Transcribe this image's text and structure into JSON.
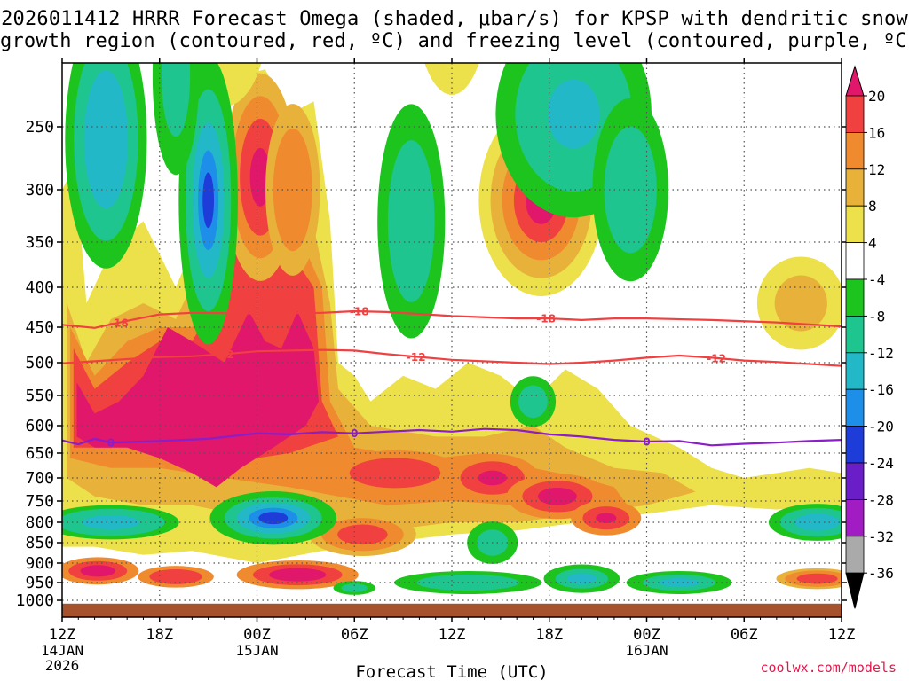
{
  "title": {
    "line1": "2026011412 HRRR Forecast Omega (shaded, μbar/s) for KPSP with dendritic snow",
    "line2": "growth region (contoured, red, ºC) and freezing level (contoured, purple, ºC)"
  },
  "credit": "coolwx.com/models",
  "chart_data": {
    "type": "heatmap",
    "title": "2026011412 HRRR Forecast Omega (shaded, μbar/s) for KPSP with dendritic snow growth region (contoured, red, ºC) and freezing level (contoured, purple, ºC)",
    "xlabel": "Forecast Time (UTC)",
    "ylabel": "",
    "x_range_hours": [
      0,
      48
    ],
    "x_ticks": [
      {
        "hour": 0,
        "label": "12Z",
        "sub1": "14JAN",
        "sub2": "2026"
      },
      {
        "hour": 6,
        "label": "18Z",
        "sub1": "",
        "sub2": ""
      },
      {
        "hour": 12,
        "label": "00Z",
        "sub1": "15JAN",
        "sub2": ""
      },
      {
        "hour": 18,
        "label": "06Z",
        "sub1": "",
        "sub2": ""
      },
      {
        "hour": 24,
        "label": "12Z",
        "sub1": "",
        "sub2": ""
      },
      {
        "hour": 30,
        "label": "18Z",
        "sub1": "",
        "sub2": ""
      },
      {
        "hour": 36,
        "label": "00Z",
        "sub1": "16JAN",
        "sub2": ""
      },
      {
        "hour": 42,
        "label": "06Z",
        "sub1": "",
        "sub2": ""
      },
      {
        "hour": 48,
        "label": "12Z",
        "sub1": "",
        "sub2": ""
      }
    ],
    "y_ticks": [
      250,
      300,
      350,
      400,
      450,
      500,
      550,
      600,
      650,
      700,
      750,
      800,
      850,
      900,
      950,
      1000
    ],
    "y_range_hpa": [
      200,
      1010
    ],
    "grid": true,
    "colorbar": {
      "position": "right",
      "labels": [
        "20",
        "16",
        "12",
        "8",
        "4",
        "-4",
        "-8",
        "-12",
        "-16",
        "-20",
        "-24",
        "-28",
        "-32",
        "-36"
      ],
      "colors": [
        "#e0176a",
        "#f04040",
        "#ef8a2e",
        "#e8b13a",
        "#ece14a",
        "#ffffff",
        "#1ec41e",
        "#1fc58e",
        "#22b8c8",
        "#1e8fe8",
        "#1e3cd8",
        "#6a1ec8",
        "#a21cc4",
        "#aaaaaa",
        "#000000"
      ]
    },
    "contours": [
      {
        "name": "-18",
        "color": "#f04040",
        "label": "-18",
        "points": [
          [
            0,
            447
          ],
          [
            2,
            451
          ],
          [
            4,
            442
          ],
          [
            6,
            434
          ],
          [
            8,
            432
          ],
          [
            12,
            433
          ],
          [
            16,
            432
          ],
          [
            18,
            430
          ],
          [
            20,
            431
          ],
          [
            24,
            436
          ],
          [
            28,
            439
          ],
          [
            30,
            439
          ],
          [
            32,
            441
          ],
          [
            34,
            439
          ],
          [
            36,
            439
          ],
          [
            40,
            441
          ],
          [
            44,
            444
          ],
          [
            48,
            449
          ]
        ],
        "label_hours": [
          3.5,
          18.3,
          29.8
        ]
      },
      {
        "name": "-12",
        "color": "#f04040",
        "label": "-12",
        "points": [
          [
            0,
            501
          ],
          [
            2,
            498
          ],
          [
            4,
            495
          ],
          [
            6,
            492
          ],
          [
            8,
            491
          ],
          [
            10,
            488
          ],
          [
            12,
            484
          ],
          [
            16,
            482
          ],
          [
            18,
            483
          ],
          [
            20,
            488
          ],
          [
            22,
            492
          ],
          [
            24,
            496
          ],
          [
            28,
            500
          ],
          [
            30,
            502
          ],
          [
            32,
            500
          ],
          [
            34,
            497
          ],
          [
            36,
            493
          ],
          [
            38,
            490
          ],
          [
            40,
            493
          ],
          [
            42,
            497
          ],
          [
            44,
            499
          ],
          [
            48,
            505
          ]
        ],
        "label_hours": [
          10,
          21.8,
          40.3
        ]
      },
      {
        "name": "0",
        "color": "#8a1ec8",
        "label": "0",
        "points": [
          [
            0,
            627
          ],
          [
            1,
            634
          ],
          [
            2,
            624
          ],
          [
            3,
            631
          ],
          [
            6,
            628
          ],
          [
            9,
            624
          ],
          [
            12,
            614
          ],
          [
            14,
            616
          ],
          [
            16,
            612
          ],
          [
            18,
            614
          ],
          [
            20,
            611
          ],
          [
            22,
            608
          ],
          [
            24,
            611
          ],
          [
            26,
            606
          ],
          [
            28,
            608
          ],
          [
            30,
            616
          ],
          [
            32,
            620
          ],
          [
            34,
            626
          ],
          [
            36,
            629
          ],
          [
            38,
            628
          ],
          [
            40,
            636
          ],
          [
            42,
            633
          ],
          [
            44,
            631
          ],
          [
            46,
            628
          ],
          [
            48,
            626
          ]
        ],
        "label_hours": [
          3,
          18,
          36
        ]
      }
    ],
    "ground_level_hpa": 1002
  },
  "axis": {
    "xlabel": "Forecast Time (UTC)"
  },
  "colors": {
    "freezing_level": "#8a1ec8",
    "dgz": "#f04040",
    "ground": "#a5522d",
    "credit": "#e8174a"
  }
}
